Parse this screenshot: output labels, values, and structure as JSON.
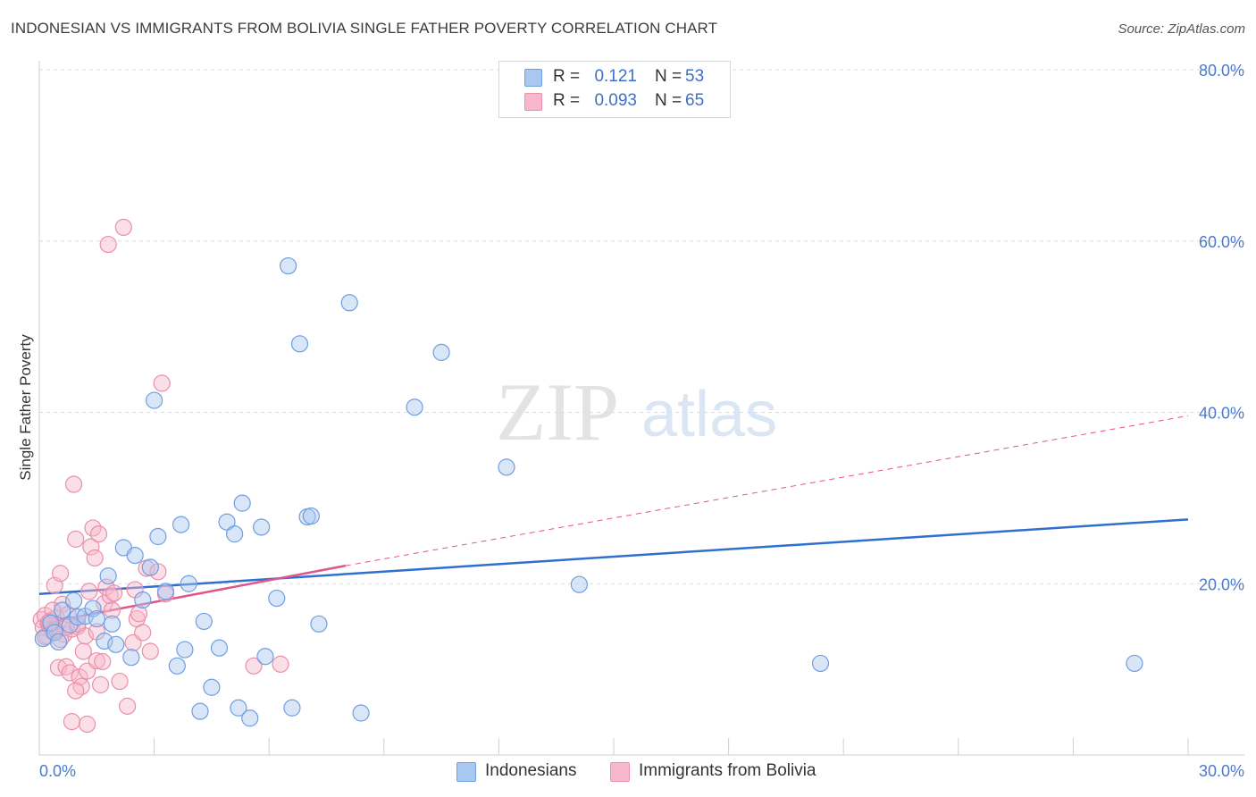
{
  "header": {
    "title": "INDONESIAN VS IMMIGRANTS FROM BOLIVIA SINGLE FATHER POVERTY CORRELATION CHART",
    "source": "Source: ZipAtlas.com"
  },
  "watermark": {
    "zip": "ZIP",
    "atlas": "atlas"
  },
  "legend": {
    "rows": [
      {
        "r_label": "R =",
        "r_value": "0.121",
        "n_label": "N =",
        "n_value": "53"
      },
      {
        "r_label": "R =",
        "r_value": "0.093",
        "n_label": "N =",
        "n_value": "65"
      }
    ]
  },
  "bottom_legend": {
    "series1": "Indonesians",
    "series2": "Immigrants from Bolivia"
  },
  "colors": {
    "blue_fill": "#a9c8f0",
    "blue_stroke": "#6f9ee0",
    "blue_line": "#2f6fd0",
    "pink_fill": "#f6b8ca",
    "pink_stroke": "#ea8fab",
    "pink_line": "#e0558a",
    "axis_text": "#4a7bd0"
  },
  "chart_data": {
    "type": "scatter",
    "title": "INDONESIAN VS IMMIGRANTS FROM BOLIVIA SINGLE FATHER POVERTY CORRELATION CHART",
    "xlabel": "",
    "ylabel": "Single Father Poverty",
    "xlim": [
      0,
      30
    ],
    "ylim": [
      0,
      80
    ],
    "x_tick_labels": [
      "0.0%",
      "30.0%"
    ],
    "y_ticks": [
      20,
      40,
      60,
      80
    ],
    "y_tick_labels": [
      "20.0%",
      "40.0%",
      "60.0%",
      "80.0%"
    ],
    "grid": true,
    "legend_position": "top-center",
    "series": [
      {
        "name": "Indonesians",
        "color": "#a9c8f0",
        "points": [
          [
            0.1,
            13.6
          ],
          [
            0.3,
            15.4
          ],
          [
            0.4,
            14.3
          ],
          [
            0.5,
            13.2
          ],
          [
            0.6,
            16.9
          ],
          [
            0.8,
            15.2
          ],
          [
            0.9,
            18.0
          ],
          [
            1.0,
            16.1
          ],
          [
            1.2,
            16.2
          ],
          [
            1.4,
            17.1
          ],
          [
            1.5,
            15.9
          ],
          [
            1.7,
            13.3
          ],
          [
            1.8,
            20.9
          ],
          [
            1.9,
            15.3
          ],
          [
            2.0,
            12.9
          ],
          [
            2.2,
            24.2
          ],
          [
            2.4,
            11.4
          ],
          [
            2.5,
            23.3
          ],
          [
            2.7,
            18.1
          ],
          [
            2.9,
            21.9
          ],
          [
            3.0,
            41.4
          ],
          [
            3.1,
            25.5
          ],
          [
            3.3,
            19.1
          ],
          [
            3.6,
            10.4
          ],
          [
            3.7,
            26.9
          ],
          [
            3.8,
            12.3
          ],
          [
            3.9,
            20.0
          ],
          [
            4.2,
            5.1
          ],
          [
            4.3,
            15.6
          ],
          [
            4.5,
            7.9
          ],
          [
            4.7,
            12.5
          ],
          [
            4.9,
            27.2
          ],
          [
            5.1,
            25.8
          ],
          [
            5.2,
            5.5
          ],
          [
            5.3,
            29.4
          ],
          [
            5.5,
            4.3
          ],
          [
            5.8,
            26.6
          ],
          [
            5.9,
            11.5
          ],
          [
            6.2,
            18.3
          ],
          [
            6.5,
            57.1
          ],
          [
            6.6,
            5.5
          ],
          [
            6.8,
            48.0
          ],
          [
            7.0,
            27.8
          ],
          [
            7.1,
            27.9
          ],
          [
            7.3,
            15.3
          ],
          [
            8.1,
            52.8
          ],
          [
            8.4,
            4.9
          ],
          [
            9.8,
            40.6
          ],
          [
            10.5,
            47.0
          ],
          [
            12.2,
            33.6
          ],
          [
            14.1,
            19.9
          ],
          [
            20.4,
            10.7
          ],
          [
            28.6,
            10.7
          ]
        ]
      },
      {
        "name": "Immigrants from Bolivia",
        "color": "#f6b8ca",
        "points": [
          [
            0.05,
            15.8
          ],
          [
            0.1,
            14.9
          ],
          [
            0.15,
            16.3
          ],
          [
            0.2,
            13.9
          ],
          [
            0.25,
            15.2
          ],
          [
            0.3,
            15.7
          ],
          [
            0.35,
            14.4
          ],
          [
            0.4,
            19.8
          ],
          [
            0.45,
            16.0
          ],
          [
            0.5,
            10.2
          ],
          [
            0.55,
            21.2
          ],
          [
            0.6,
            17.6
          ],
          [
            0.65,
            14.1
          ],
          [
            0.7,
            10.3
          ],
          [
            0.75,
            16.4
          ],
          [
            0.8,
            9.6
          ],
          [
            0.85,
            14.7
          ],
          [
            0.9,
            31.6
          ],
          [
            0.95,
            25.2
          ],
          [
            1.0,
            15.0
          ],
          [
            1.05,
            9.1
          ],
          [
            1.1,
            8.0
          ],
          [
            1.15,
            12.1
          ],
          [
            1.2,
            13.9
          ],
          [
            1.25,
            9.8
          ],
          [
            1.3,
            19.1
          ],
          [
            1.35,
            24.3
          ],
          [
            1.4,
            26.5
          ],
          [
            1.45,
            23.0
          ],
          [
            1.5,
            11.0
          ],
          [
            1.55,
            25.8
          ],
          [
            1.6,
            8.2
          ],
          [
            1.65,
            10.9
          ],
          [
            1.7,
            17.7
          ],
          [
            1.75,
            19.6
          ],
          [
            1.8,
            59.6
          ],
          [
            1.85,
            18.6
          ],
          [
            1.9,
            16.9
          ],
          [
            1.95,
            18.9
          ],
          [
            2.1,
            8.6
          ],
          [
            2.2,
            61.6
          ],
          [
            2.3,
            5.7
          ],
          [
            2.45,
            13.1
          ],
          [
            2.5,
            19.3
          ],
          [
            2.55,
            15.9
          ],
          [
            2.6,
            16.5
          ],
          [
            2.7,
            14.3
          ],
          [
            2.8,
            21.8
          ],
          [
            2.9,
            12.1
          ],
          [
            3.1,
            21.4
          ],
          [
            3.2,
            43.4
          ],
          [
            3.3,
            18.8
          ],
          [
            0.85,
            3.9
          ],
          [
            1.25,
            3.6
          ],
          [
            0.95,
            7.5
          ],
          [
            0.55,
            13.5
          ],
          [
            0.35,
            16.9
          ],
          [
            0.7,
            14.9
          ],
          [
            1.0,
            15.3
          ],
          [
            1.5,
            14.4
          ],
          [
            5.6,
            10.4
          ],
          [
            6.3,
            10.6
          ],
          [
            0.25,
            15.5
          ],
          [
            0.4,
            14.6
          ],
          [
            0.15,
            13.8
          ]
        ]
      }
    ],
    "trend_lines": [
      {
        "series": "Indonesians",
        "x": [
          0,
          30
        ],
        "y": [
          18.8,
          27.5
        ],
        "style": "solid"
      },
      {
        "series": "Immigrants from Bolivia",
        "x": [
          0,
          8
        ],
        "y": [
          15.3,
          22.1
        ],
        "style": "solid"
      },
      {
        "series": "Immigrants from Bolivia",
        "x": [
          8,
          30
        ],
        "y": [
          22.1,
          39.6
        ],
        "style": "dashed"
      }
    ]
  }
}
